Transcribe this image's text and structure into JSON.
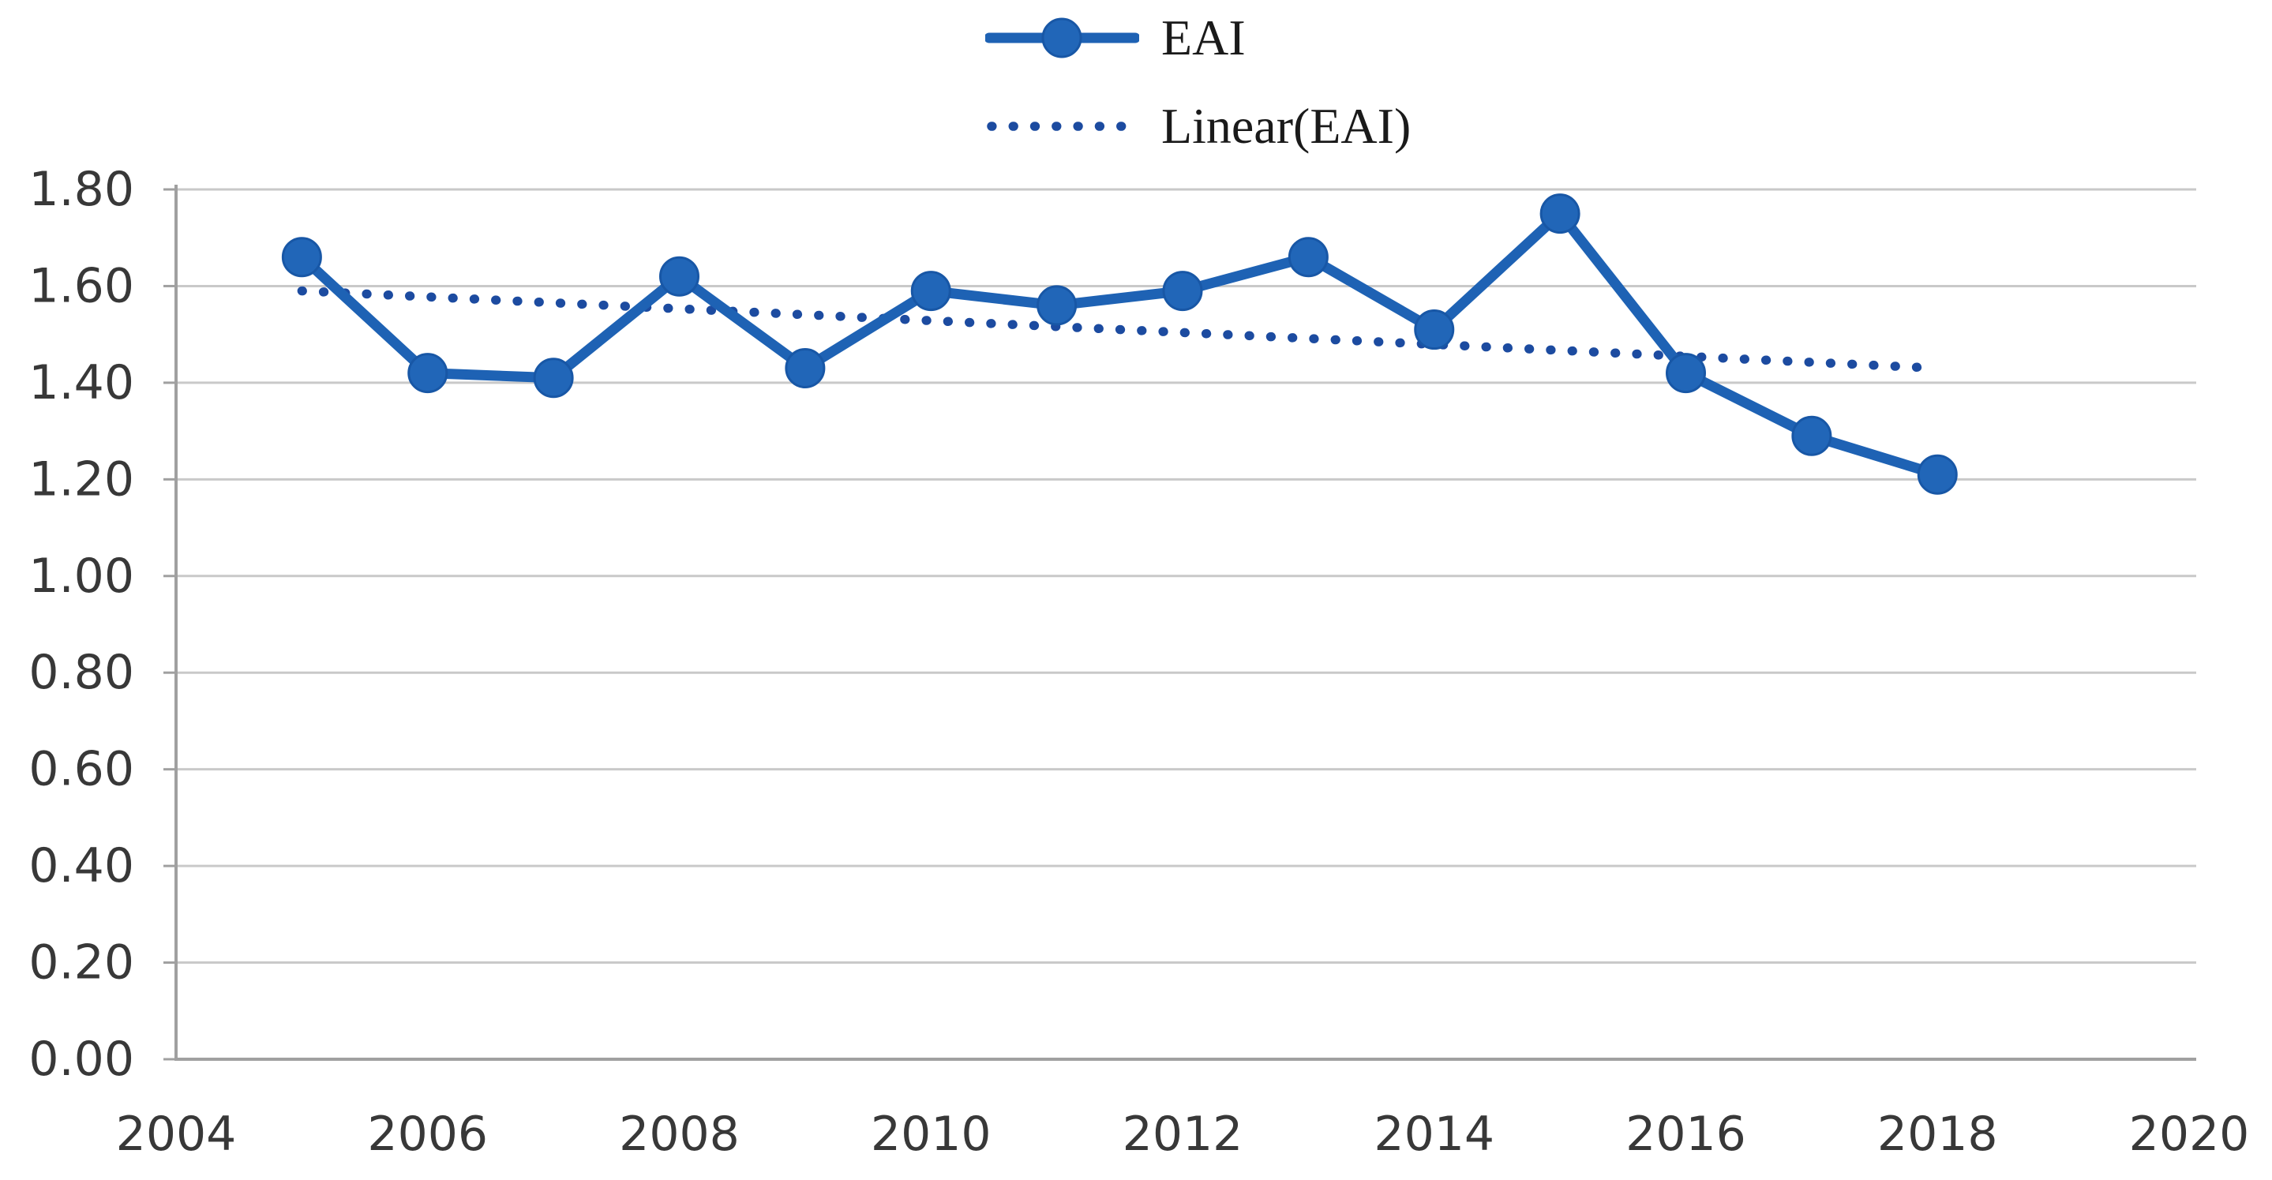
{
  "legend": {
    "items": [
      {
        "label": "EAI",
        "glyph": "solid-line-with-circle-marker"
      },
      {
        "label": "Linear(EAI)",
        "glyph": "dotted-line"
      }
    ]
  },
  "colors": {
    "series_line": "#1E62B4",
    "marker_fill": "#2166B8",
    "marker_stroke": "#1857A6",
    "trendline": "#1C4BA0",
    "gridline": "#C9C9C9",
    "axis_line": "#A0A0A0",
    "tick_text": "#383838",
    "legend_text": "#1a1a1a",
    "background": "#ffffff"
  },
  "chart_data": {
    "type": "line",
    "title": "",
    "xlabel": "",
    "ylabel": "",
    "xlim": [
      2004,
      2020
    ],
    "ylim": [
      0,
      1.8
    ],
    "grid": "horizontal",
    "legend_position": "top-center",
    "x_tick_labels": [
      "2004",
      "2006",
      "2008",
      "2010",
      "2012",
      "2014",
      "2016",
      "2018",
      "2020"
    ],
    "y_tick_labels": [
      "0.00",
      "0.20",
      "0.40",
      "0.60",
      "0.80",
      "1.00",
      "1.20",
      "1.40",
      "1.60",
      "1.80"
    ],
    "series": [
      {
        "name": "EAI",
        "style": "solid-with-markers",
        "x": [
          2005,
          2006,
          2007,
          2008,
          2009,
          2010,
          2011,
          2012,
          2013,
          2014,
          2015,
          2016,
          2017,
          2018
        ],
        "values": [
          1.66,
          1.42,
          1.41,
          1.62,
          1.43,
          1.59,
          1.56,
          1.59,
          1.66,
          1.51,
          1.75,
          1.42,
          1.29,
          1.21
        ]
      },
      {
        "name": "Linear(EAI)",
        "style": "dotted-trendline",
        "x": [
          2005,
          2018
        ],
        "values": [
          1.59,
          1.43
        ]
      }
    ]
  }
}
